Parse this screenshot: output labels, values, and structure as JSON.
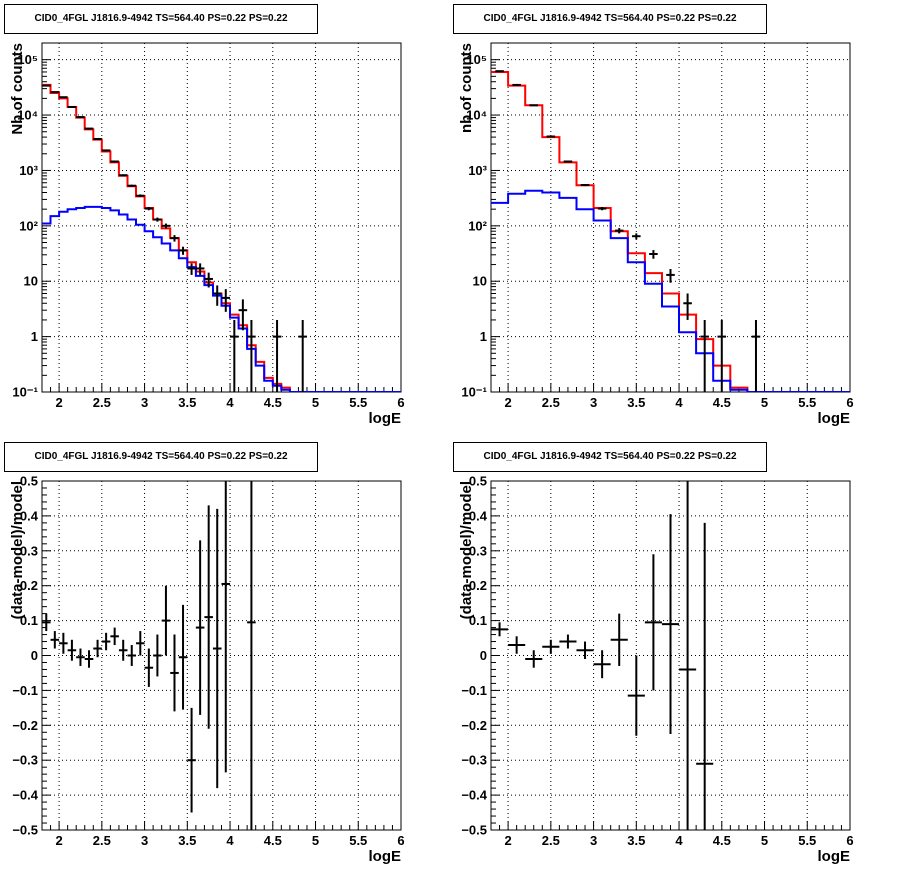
{
  "chart_data": [
    {
      "panel": "top-left",
      "type": "histogram",
      "title": "CID0_4FGL J1816.9-4942 TS=564.40 PS=0.22 PS=0.22",
      "xlabel": "logE",
      "ylabel": "Nb of counts",
      "xlim": [
        1.8,
        6.0
      ],
      "ylim": [
        0.1,
        200000
      ],
      "yscale": "log",
      "grid": true,
      "xticks": [
        2,
        2.5,
        3,
        3.5,
        4,
        4.5,
        5,
        5.5,
        6
      ],
      "xtick_labels": [
        "2",
        "2.5",
        "3",
        "3.5",
        "4",
        "4.5",
        "5",
        "5.5",
        "6"
      ],
      "yticks": [
        0.1,
        1,
        10,
        100,
        1000,
        10000,
        100000
      ],
      "ytick_labels": [
        "10⁻¹",
        "1",
        "10",
        "10²",
        "10³",
        "10⁴",
        "10⁵"
      ],
      "bin_edges": [
        1.8,
        1.9,
        2.0,
        2.1,
        2.2,
        2.3,
        2.4,
        2.5,
        2.6,
        2.7,
        2.8,
        2.9,
        3.0,
        3.1,
        3.2,
        3.3,
        3.4,
        3.5,
        3.6,
        3.7,
        3.8,
        3.9,
        4.0,
        4.1,
        4.2,
        4.3,
        4.4,
        4.5,
        4.6,
        4.7,
        4.8,
        4.9,
        5.0,
        5.1,
        5.2,
        5.3,
        5.4,
        5.5,
        5.6,
        5.7,
        5.8,
        5.9,
        6.0
      ],
      "series": [
        {
          "color": "#ff0000",
          "values": [
            35000,
            25000,
            20000,
            14000,
            9000,
            5500,
            3600,
            2200,
            1400,
            800,
            520,
            340,
            210,
            130,
            90,
            60,
            36,
            22,
            15,
            9.5,
            6,
            4,
            2.5,
            1.6,
            0.7,
            0.35,
            0.18,
            0.14,
            0.12,
            0.1,
            0.1,
            0.1,
            0.1,
            0.1,
            0.1,
            0.1,
            0.1,
            0.1,
            0.1,
            0.1,
            0.1,
            0.1
          ]
        },
        {
          "color": "#0000ff",
          "values": [
            110,
            150,
            180,
            200,
            210,
            220,
            220,
            210,
            190,
            160,
            130,
            105,
            80,
            62,
            48,
            36,
            26,
            18,
            12.5,
            8.5,
            5.5,
            3.6,
            2.2,
            1.4,
            0.6,
            0.3,
            0.16,
            0.13,
            0.11,
            0.1,
            0.1,
            0.1,
            0.1,
            0.1,
            0.1,
            0.1,
            0.1,
            0.1,
            0.1,
            0.1,
            0.1,
            0.1
          ]
        }
      ],
      "data_points": [
        {
          "x": 1.85,
          "y": 34000,
          "yerr": 200
        },
        {
          "x": 1.95,
          "y": 26000,
          "yerr": 170
        },
        {
          "x": 2.05,
          "y": 21000,
          "yerr": 150
        },
        {
          "x": 2.15,
          "y": 14000,
          "yerr": 120
        },
        {
          "x": 2.25,
          "y": 9200,
          "yerr": 100
        },
        {
          "x": 2.35,
          "y": 5700,
          "yerr": 80
        },
        {
          "x": 2.45,
          "y": 3700,
          "yerr": 60
        },
        {
          "x": 2.55,
          "y": 2300,
          "yerr": 48
        },
        {
          "x": 2.65,
          "y": 1450,
          "yerr": 38
        },
        {
          "x": 2.75,
          "y": 820,
          "yerr": 29
        },
        {
          "x": 2.85,
          "y": 530,
          "yerr": 23
        },
        {
          "x": 2.95,
          "y": 350,
          "yerr": 19
        },
        {
          "x": 3.05,
          "y": 205,
          "yerr": 14
        },
        {
          "x": 3.15,
          "y": 130,
          "yerr": 11
        },
        {
          "x": 3.25,
          "y": 100,
          "yerr": 10
        },
        {
          "x": 3.35,
          "y": 60,
          "yerr": 8
        },
        {
          "x": 3.45,
          "y": 36,
          "yerr": 6
        },
        {
          "x": 3.55,
          "y": 17,
          "yerr": 4
        },
        {
          "x": 3.65,
          "y": 17,
          "yerr": 4
        },
        {
          "x": 3.75,
          "y": 11,
          "yerr": 3.3
        },
        {
          "x": 3.85,
          "y": 6,
          "yerr": 2.4
        },
        {
          "x": 3.95,
          "y": 5,
          "yerr": 2.2
        },
        {
          "x": 4.05,
          "y": 1,
          "yerr": 1
        },
        {
          "x": 4.15,
          "y": 3,
          "yerr": 1.7
        },
        {
          "x": 4.25,
          "y": 1,
          "yerr": 1
        },
        {
          "x": 4.55,
          "y": 1,
          "yerr": 1
        },
        {
          "x": 4.85,
          "y": 1,
          "yerr": 1
        }
      ]
    },
    {
      "panel": "top-right",
      "type": "histogram",
      "title": "CID0_4FGL J1816.9-4942 TS=564.40 PS=0.22 PS=0.22",
      "xlabel": "logE",
      "ylabel": "nb of counts",
      "xlim": [
        1.8,
        6.0
      ],
      "ylim": [
        0.1,
        200000
      ],
      "yscale": "log",
      "grid": true,
      "xticks": [
        2,
        2.5,
        3,
        3.5,
        4,
        4.5,
        5,
        5.5,
        6
      ],
      "xtick_labels": [
        "2",
        "2.5",
        "3",
        "3.5",
        "4",
        "4.5",
        "5",
        "5.5",
        "6"
      ],
      "yticks": [
        0.1,
        1,
        10,
        100,
        1000,
        10000,
        100000
      ],
      "ytick_labels": [
        "10⁻¹",
        "1",
        "10",
        "10²",
        "10³",
        "10⁴",
        "10⁵"
      ],
      "bin_edges": [
        1.8,
        2.0,
        2.2,
        2.4,
        2.6,
        2.8,
        3.0,
        3.2,
        3.4,
        3.6,
        3.8,
        4.0,
        4.2,
        4.4,
        4.6,
        4.8,
        5.0,
        5.2,
        5.4,
        5.6,
        5.8,
        6.0
      ],
      "series": [
        {
          "color": "#ff0000",
          "values": [
            60000,
            34000,
            15000,
            4000,
            1400,
            540,
            210,
            80,
            32,
            14,
            6,
            2.5,
            0.9,
            0.3,
            0.12,
            0.1,
            0.1,
            0.1,
            0.1,
            0.1,
            0.1
          ]
        },
        {
          "color": "#0000ff",
          "values": [
            260,
            380,
            430,
            400,
            320,
            200,
            125,
            60,
            22,
            9,
            3.5,
            1.2,
            0.5,
            0.16,
            0.11,
            0.1,
            0.1,
            0.1,
            0.1,
            0.1,
            0.1
          ]
        }
      ],
      "data_points": [
        {
          "x": 1.9,
          "y": 62000,
          "yerr": 250
        },
        {
          "x": 2.1,
          "y": 35000,
          "yerr": 190
        },
        {
          "x": 2.3,
          "y": 15000,
          "yerr": 120
        },
        {
          "x": 2.5,
          "y": 4100,
          "yerr": 64
        },
        {
          "x": 2.7,
          "y": 1450,
          "yerr": 38
        },
        {
          "x": 2.9,
          "y": 545,
          "yerr": 23
        },
        {
          "x": 3.1,
          "y": 205,
          "yerr": 14
        },
        {
          "x": 3.3,
          "y": 82,
          "yerr": 9
        },
        {
          "x": 3.5,
          "y": 65,
          "yerr": 8
        },
        {
          "x": 3.7,
          "y": 31,
          "yerr": 5.5
        },
        {
          "x": 3.9,
          "y": 13,
          "yerr": 3.6
        },
        {
          "x": 4.1,
          "y": 4,
          "yerr": 2
        },
        {
          "x": 4.3,
          "y": 1,
          "yerr": 1
        },
        {
          "x": 4.5,
          "y": 1,
          "yerr": 1
        },
        {
          "x": 4.9,
          "y": 1,
          "yerr": 1
        }
      ]
    },
    {
      "panel": "bottom-left",
      "type": "scatter",
      "title": "CID0_4FGL J1816.9-4942 TS=564.40 PS=0.22 PS=0.22",
      "xlabel": "logE",
      "ylabel": "(data-model)/model",
      "xlim": [
        1.8,
        6.0
      ],
      "ylim": [
        -0.5,
        0.5
      ],
      "grid": true,
      "xticks": [
        2,
        2.5,
        3,
        3.5,
        4,
        4.5,
        5,
        5.5,
        6
      ],
      "xtick_labels": [
        "2",
        "2.5",
        "3",
        "3.5",
        "4",
        "4.5",
        "5",
        "5.5",
        "6"
      ],
      "yticks": [
        -0.5,
        -0.4,
        -0.3,
        -0.2,
        -0.1,
        0,
        0.1,
        0.2,
        0.3,
        0.4,
        0.5
      ],
      "ytick_labels": [
        "−0.5",
        "−0.4",
        "−0.3",
        "−0.2",
        "−0.1",
        "0",
        "0.1",
        "0.2",
        "0.3",
        "0.4",
        "0.5"
      ],
      "xerr": 0.05,
      "points": [
        {
          "x": 1.85,
          "y": 0.095,
          "yerr": 0.025
        },
        {
          "x": 1.95,
          "y": 0.045,
          "yerr": 0.025
        },
        {
          "x": 2.05,
          "y": 0.035,
          "yerr": 0.03
        },
        {
          "x": 2.15,
          "y": 0.015,
          "yerr": 0.03
        },
        {
          "x": 2.25,
          "y": -0.005,
          "yerr": 0.025
        },
        {
          "x": 2.35,
          "y": -0.01,
          "yerr": 0.025
        },
        {
          "x": 2.45,
          "y": 0.02,
          "yerr": 0.025
        },
        {
          "x": 2.55,
          "y": 0.04,
          "yerr": 0.025
        },
        {
          "x": 2.65,
          "y": 0.055,
          "yerr": 0.025
        },
        {
          "x": 2.75,
          "y": 0.015,
          "yerr": 0.03
        },
        {
          "x": 2.85,
          "y": 0.0,
          "yerr": 0.03
        },
        {
          "x": 2.95,
          "y": 0.035,
          "yerr": 0.035
        },
        {
          "x": 3.05,
          "y": -0.035,
          "yerr": 0.055
        },
        {
          "x": 3.15,
          "y": 0.0,
          "yerr": 0.06
        },
        {
          "x": 3.25,
          "y": 0.1,
          "yerr": 0.1
        },
        {
          "x": 3.35,
          "y": -0.05,
          "yerr": 0.11
        },
        {
          "x": 3.45,
          "y": -0.005,
          "yerr": 0.15
        },
        {
          "x": 3.55,
          "y": -0.3,
          "yerr": 0.15
        },
        {
          "x": 3.65,
          "y": 0.08,
          "yerr": 0.25
        },
        {
          "x": 3.75,
          "y": 0.11,
          "yerr": 0.32
        },
        {
          "x": 3.85,
          "y": 0.02,
          "yerr": 0.4
        },
        {
          "x": 3.95,
          "y": 0.205,
          "yerr": 0.54
        },
        {
          "x": 4.25,
          "y": 0.095,
          "yerr": 0.95
        }
      ]
    },
    {
      "panel": "bottom-right",
      "type": "scatter",
      "title": "CID0_4FGL J1816.9-4942 TS=564.40 PS=0.22 PS=0.22",
      "xlabel": "logE",
      "ylabel": "(data-model)/model",
      "xlim": [
        1.8,
        6.0
      ],
      "ylim": [
        -0.5,
        0.5
      ],
      "grid": true,
      "xticks": [
        2,
        2.5,
        3,
        3.5,
        4,
        4.5,
        5,
        5.5,
        6
      ],
      "xtick_labels": [
        "2",
        "2.5",
        "3",
        "3.5",
        "4",
        "4.5",
        "5",
        "5.5",
        "6"
      ],
      "yticks": [
        -0.5,
        -0.4,
        -0.3,
        -0.2,
        -0.1,
        0,
        0.1,
        0.2,
        0.3,
        0.4,
        0.5
      ],
      "ytick_labels": [
        "−0.5",
        "−0.4",
        "−0.3",
        "−0.2",
        "−0.1",
        "0",
        "0.1",
        "0.2",
        "0.3",
        "0.4",
        "0.5"
      ],
      "xerr": 0.1,
      "points": [
        {
          "x": 1.9,
          "y": 0.075,
          "yerr": 0.02
        },
        {
          "x": 2.1,
          "y": 0.03,
          "yerr": 0.025
        },
        {
          "x": 2.3,
          "y": -0.01,
          "yerr": 0.025
        },
        {
          "x": 2.5,
          "y": 0.025,
          "yerr": 0.02
        },
        {
          "x": 2.7,
          "y": 0.04,
          "yerr": 0.02
        },
        {
          "x": 2.9,
          "y": 0.015,
          "yerr": 0.025
        },
        {
          "x": 3.1,
          "y": -0.025,
          "yerr": 0.04
        },
        {
          "x": 3.3,
          "y": 0.045,
          "yerr": 0.075
        },
        {
          "x": 3.5,
          "y": -0.115,
          "yerr": 0.115
        },
        {
          "x": 3.7,
          "y": 0.095,
          "yerr": 0.195
        },
        {
          "x": 3.9,
          "y": 0.09,
          "yerr": 0.315
        },
        {
          "x": 4.1,
          "y": -0.04,
          "yerr": 0.77
        },
        {
          "x": 4.3,
          "y": -0.31,
          "yerr": 0.69
        }
      ]
    }
  ]
}
